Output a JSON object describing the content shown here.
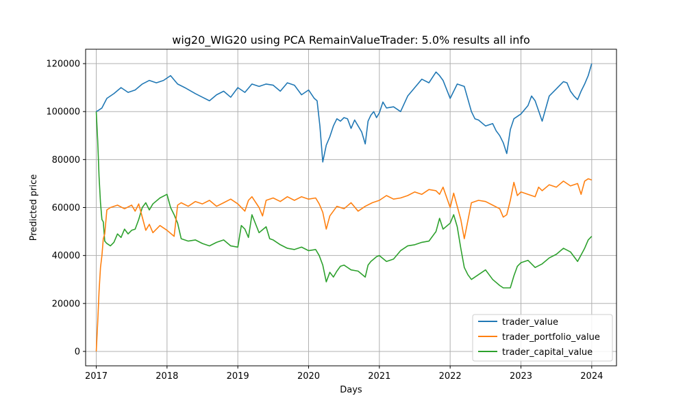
{
  "chart_data": {
    "type": "line",
    "title": "wig20_WIG20 using PCA RemainValueTrader: 5.0% results all info",
    "xlabel": "Days",
    "ylabel": "Predicted price",
    "xlim": [
      2016.85,
      2024.35
    ],
    "ylim": [
      -6000,
      126000
    ],
    "x_ticks": [
      "2017",
      "2018",
      "2019",
      "2020",
      "2021",
      "2022",
      "2023",
      "2024"
    ],
    "y_ticks": [
      0,
      20000,
      40000,
      60000,
      80000,
      100000,
      120000
    ],
    "y_tick_labels": [
      "0",
      "20000",
      "40000",
      "60000",
      "80000",
      "100000",
      "120000"
    ],
    "grid": true,
    "legend_position": "lower-right",
    "series": [
      {
        "name": "trader_value",
        "color": "#1f77b4",
        "x": [
          2017.0,
          2017.03,
          2017.08,
          2017.15,
          2017.25,
          2017.35,
          2017.45,
          2017.55,
          2017.65,
          2017.75,
          2017.85,
          2017.95,
          2018.05,
          2018.15,
          2018.25,
          2018.4,
          2018.5,
          2018.6,
          2018.7,
          2018.8,
          2018.9,
          2019.0,
          2019.1,
          2019.2,
          2019.3,
          2019.4,
          2019.5,
          2019.6,
          2019.7,
          2019.8,
          2019.9,
          2020.0,
          2020.08,
          2020.12,
          2020.16,
          2020.2,
          2020.25,
          2020.3,
          2020.35,
          2020.4,
          2020.45,
          2020.5,
          2020.55,
          2020.6,
          2020.65,
          2020.7,
          2020.75,
          2020.8,
          2020.84,
          2020.88,
          2020.92,
          2020.96,
          2021.0,
          2021.05,
          2021.1,
          2021.2,
          2021.3,
          2021.4,
          2021.5,
          2021.6,
          2021.7,
          2021.8,
          2021.85,
          2021.9,
          2022.0,
          2022.1,
          2022.2,
          2022.3,
          2022.35,
          2022.4,
          2022.5,
          2022.6,
          2022.65,
          2022.7,
          2022.75,
          2022.8,
          2022.85,
          2022.9,
          2023.0,
          2023.1,
          2023.15,
          2023.2,
          2023.3,
          2023.4,
          2023.5,
          2023.6,
          2023.65,
          2023.7,
          2023.75,
          2023.8,
          2023.85,
          2023.9,
          2023.95,
          2024.0
        ],
        "values": [
          100000,
          100500,
          101500,
          105500,
          107500,
          110000,
          108000,
          109000,
          111500,
          113000,
          112000,
          113000,
          115000,
          111500,
          110000,
          107500,
          106000,
          104500,
          107000,
          108500,
          106000,
          110000,
          108000,
          111500,
          110500,
          111500,
          111000,
          108500,
          112000,
          111000,
          107000,
          109000,
          105500,
          104500,
          94000,
          79000,
          86000,
          89500,
          94000,
          97000,
          96000,
          97500,
          97000,
          93000,
          96500,
          94000,
          91500,
          86500,
          96000,
          98500,
          100000,
          97500,
          99500,
          104000,
          101500,
          102000,
          100000,
          106500,
          110000,
          113500,
          112000,
          116500,
          115000,
          113000,
          105500,
          111500,
          110500,
          100000,
          97000,
          96500,
          94000,
          95000,
          92000,
          90000,
          87000,
          82500,
          92500,
          97000,
          99000,
          102500,
          106500,
          104500,
          96000,
          106500,
          109500,
          112500,
          112000,
          108500,
          106500,
          105000,
          108500,
          111500,
          115000,
          120000
        ]
      },
      {
        "name": "trader_portfolio_value",
        "color": "#ff7f0e",
        "x": [
          2017.0,
          2017.02,
          2017.04,
          2017.06,
          2017.08,
          2017.1,
          2017.12,
          2017.15,
          2017.2,
          2017.3,
          2017.4,
          2017.5,
          2017.55,
          2017.6,
          2017.65,
          2017.7,
          2017.75,
          2017.8,
          2017.9,
          2018.0,
          2018.1,
          2018.15,
          2018.2,
          2018.3,
          2018.4,
          2018.5,
          2018.6,
          2018.7,
          2018.8,
          2018.9,
          2019.0,
          2019.1,
          2019.15,
          2019.2,
          2019.3,
          2019.35,
          2019.4,
          2019.5,
          2019.6,
          2019.7,
          2019.8,
          2019.9,
          2020.0,
          2020.1,
          2020.15,
          2020.2,
          2020.25,
          2020.3,
          2020.4,
          2020.5,
          2020.6,
          2020.7,
          2020.8,
          2020.9,
          2021.0,
          2021.1,
          2021.2,
          2021.3,
          2021.4,
          2021.5,
          2021.6,
          2021.7,
          2021.8,
          2021.85,
          2021.9,
          2022.0,
          2022.05,
          2022.1,
          2022.15,
          2022.2,
          2022.3,
          2022.4,
          2022.5,
          2022.6,
          2022.7,
          2022.75,
          2022.8,
          2022.85,
          2022.9,
          2022.95,
          2023.0,
          2023.1,
          2023.2,
          2023.25,
          2023.3,
          2023.4,
          2023.5,
          2023.6,
          2023.7,
          2023.8,
          2023.85,
          2023.9,
          2023.95,
          2024.0
        ],
        "values": [
          0,
          12000,
          25000,
          35000,
          40000,
          47000,
          49000,
          59000,
          60000,
          61000,
          59500,
          61000,
          58500,
          61500,
          56000,
          50500,
          53000,
          49500,
          52500,
          50500,
          48000,
          61000,
          62000,
          60500,
          62500,
          61500,
          63000,
          60500,
          62000,
          63500,
          61500,
          58500,
          63000,
          64500,
          60000,
          56500,
          63000,
          64000,
          62500,
          64500,
          63000,
          64500,
          63500,
          64000,
          61500,
          58000,
          51000,
          56500,
          60500,
          59500,
          62000,
          58500,
          60500,
          62000,
          63000,
          65000,
          63500,
          64000,
          65000,
          66500,
          65500,
          67500,
          67000,
          65500,
          68500,
          60000,
          66000,
          60500,
          55000,
          47000,
          62000,
          63000,
          62500,
          61000,
          59500,
          56000,
          57000,
          63000,
          70500,
          65000,
          66500,
          65500,
          64500,
          68500,
          67000,
          69500,
          68500,
          71000,
          69000,
          70000,
          65500,
          71000,
          72000,
          71500
        ]
      },
      {
        "name": "trader_capital_value",
        "color": "#2ca02c",
        "x": [
          2017.0,
          2017.02,
          2017.04,
          2017.06,
          2017.08,
          2017.1,
          2017.12,
          2017.15,
          2017.2,
          2017.25,
          2017.3,
          2017.35,
          2017.4,
          2017.45,
          2017.5,
          2017.55,
          2017.6,
          2017.65,
          2017.7,
          2017.75,
          2017.8,
          2017.9,
          2018.0,
          2018.05,
          2018.1,
          2018.15,
          2018.2,
          2018.3,
          2018.4,
          2018.5,
          2018.6,
          2018.7,
          2018.8,
          2018.9,
          2019.0,
          2019.05,
          2019.1,
          2019.15,
          2019.2,
          2019.3,
          2019.4,
          2019.45,
          2019.5,
          2019.6,
          2019.7,
          2019.8,
          2019.9,
          2020.0,
          2020.1,
          2020.15,
          2020.2,
          2020.25,
          2020.3,
          2020.35,
          2020.4,
          2020.45,
          2020.5,
          2020.6,
          2020.7,
          2020.8,
          2020.84,
          2020.88,
          2020.92,
          2020.96,
          2021.0,
          2021.1,
          2021.2,
          2021.3,
          2021.4,
          2021.5,
          2021.6,
          2021.7,
          2021.8,
          2021.85,
          2021.9,
          2022.0,
          2022.05,
          2022.1,
          2022.15,
          2022.2,
          2022.25,
          2022.3,
          2022.4,
          2022.5,
          2022.6,
          2022.7,
          2022.75,
          2022.8,
          2022.85,
          2022.9,
          2022.95,
          2023.0,
          2023.1,
          2023.2,
          2023.3,
          2023.4,
          2023.5,
          2023.6,
          2023.7,
          2023.8,
          2023.9,
          2023.95,
          2024.0
        ],
        "values": [
          100000,
          88000,
          73000,
          62000,
          55000,
          54000,
          46000,
          45000,
          44000,
          45500,
          49000,
          47500,
          51000,
          49000,
          50500,
          51000,
          55000,
          60000,
          62000,
          59000,
          61500,
          64000,
          65500,
          60000,
          57000,
          53500,
          47000,
          46000,
          46500,
          45000,
          44000,
          45500,
          46500,
          44000,
          43500,
          52500,
          51000,
          47500,
          57000,
          49500,
          52000,
          47000,
          46500,
          44500,
          43000,
          42500,
          43500,
          42000,
          42500,
          40000,
          36000,
          29000,
          33000,
          31000,
          33500,
          35500,
          36000,
          34000,
          33500,
          31000,
          36000,
          37500,
          38500,
          39500,
          40000,
          37500,
          38500,
          42000,
          44000,
          44500,
          45500,
          46000,
          50000,
          55500,
          51000,
          53500,
          57000,
          52000,
          43000,
          35000,
          32000,
          30000,
          32000,
          34000,
          30000,
          27500,
          26500,
          26500,
          26500,
          31500,
          35500,
          37000,
          38000,
          35000,
          36500,
          39000,
          40500,
          43000,
          41500,
          37500,
          43000,
          46500,
          48000
        ]
      }
    ]
  }
}
